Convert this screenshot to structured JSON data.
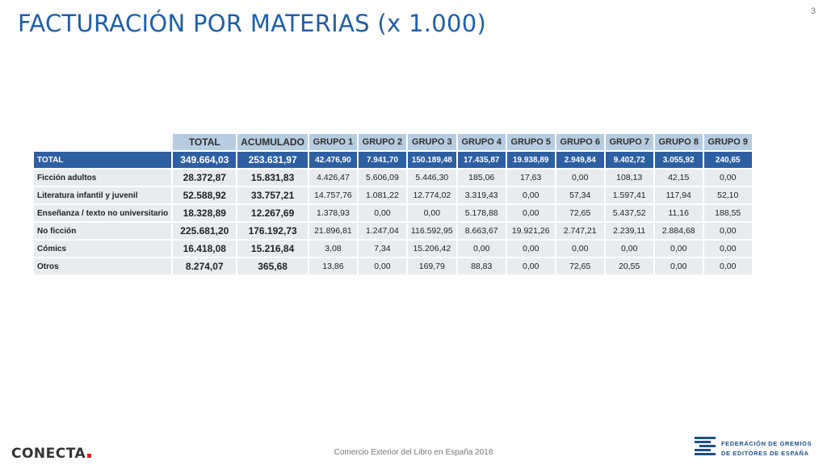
{
  "page": {
    "title": "FACTURACIÓN POR MATERIAS (x 1.000)",
    "page_number": "3",
    "footer": "Comercio Exterior del Libro en España 2018"
  },
  "logos": {
    "conecta": "CONECTA",
    "federation_line1": "FEDERACIÓN DE GREMIOS",
    "federation_line2": "DE EDITORES DE ESPAÑA"
  },
  "table": {
    "headers": [
      "TOTAL",
      "ACUMULADO",
      "GRUPO 1",
      "GRUPO 2",
      "GRUPO 3",
      "GRUPO 4",
      "GRUPO 5",
      "GRUPO 6",
      "GRUPO 7",
      "GRUPO 8",
      "GRUPO 9"
    ],
    "rows": [
      {
        "label": "TOTAL",
        "values": [
          "349.664,03",
          "253.631,97",
          "42.476,90",
          "7.941,70",
          "150.189,48",
          "17.435,87",
          "19.938,89",
          "2.949,84",
          "9.402,72",
          "3.055,92",
          "240,65"
        ]
      },
      {
        "label": "Ficción adultos",
        "values": [
          "28.372,87",
          "15.831,83",
          "4.426,47",
          "5.606,09",
          "5.446,30",
          "185,06",
          "17,63",
          "0,00",
          "108,13",
          "42,15",
          "0,00"
        ]
      },
      {
        "label": "Literatura infantil y juvenil",
        "values": [
          "52.588,92",
          "33.757,21",
          "14.757,76",
          "1.081,22",
          "12.774,02",
          "3.319,43",
          "0,00",
          "57,34",
          "1.597,41",
          "117,94",
          "52,10"
        ]
      },
      {
        "label": "Enseñanza / texto no universitario",
        "values": [
          "18.328,89",
          "12.267,69",
          "1.378,93",
          "0,00",
          "0,00",
          "5.178,88",
          "0,00",
          "72,65",
          "5.437,52",
          "11,16",
          "188,55"
        ]
      },
      {
        "label": "No ficción",
        "values": [
          "225.681,20",
          "176.192,73",
          "21.896,81",
          "1.247,04",
          "116.592,95",
          "8.663,67",
          "19.921,26",
          "2.747,21",
          "2.239,11",
          "2.884,68",
          "0,00"
        ]
      },
      {
        "label": "Cómics",
        "values": [
          "16.418,08",
          "15.216,84",
          "3,08",
          "7,34",
          "15.206,42",
          "0,00",
          "0,00",
          "0,00",
          "0,00",
          "0,00",
          "0,00"
        ]
      },
      {
        "label": "Otros",
        "values": [
          "8.274,07",
          "365,68",
          "13,86",
          "0,00",
          "169,79",
          "88,83",
          "0,00",
          "72,65",
          "20,55",
          "0,00",
          "0,00"
        ]
      }
    ]
  }
}
